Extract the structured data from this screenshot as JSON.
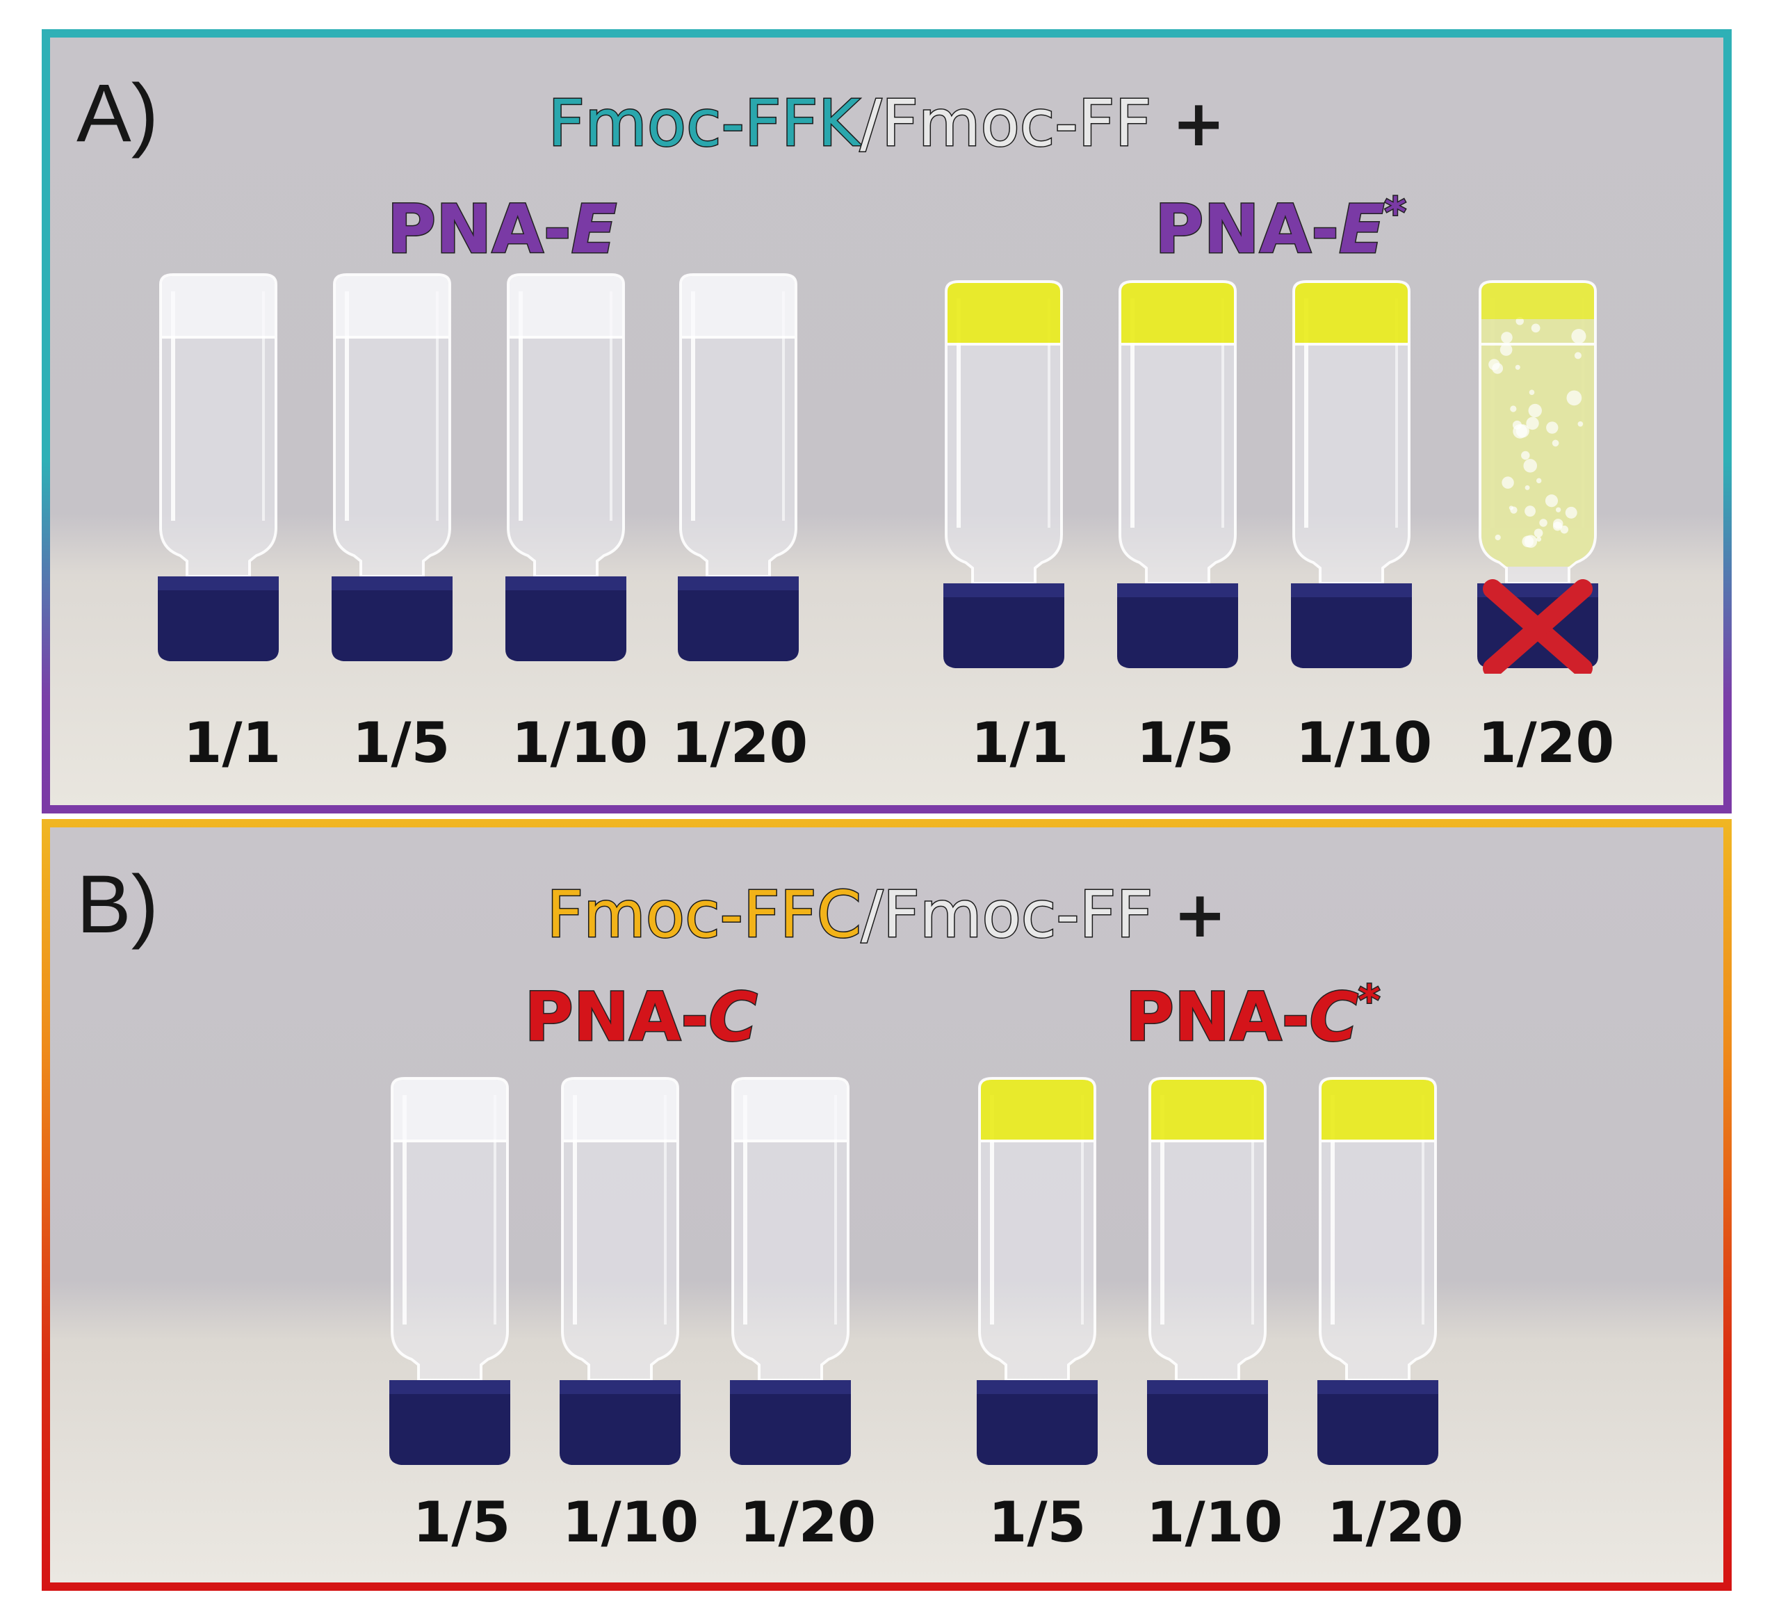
{
  "panels": [
    {
      "letter": "A)",
      "title_parts": [
        "Fmoc-FFK",
        "/",
        "Fmoc-FF",
        "+"
      ],
      "title_colors": [
        "#2aa7ad",
        "#e8e8e8",
        "#e8e8e8",
        "#1a1a1a"
      ],
      "groups": [
        {
          "label_main": "PNA-",
          "label_italic": "E",
          "label_sup": "",
          "label_color": "#7a3aa5"
        },
        {
          "label_main": "PNA-",
          "label_italic": "E",
          "label_sup": "*",
          "label_color": "#7a3aa5"
        }
      ],
      "ratios_group1": [
        "1/1",
        "1/5",
        "1/10",
        "1/20"
      ],
      "ratios_group2": [
        "1/1",
        "1/5",
        "1/10",
        "1/20"
      ],
      "vial_contents_group1": [
        "clear",
        "clear",
        "clear",
        "clear"
      ],
      "vial_contents_group2": [
        "yellow",
        "yellow",
        "yellow",
        "yellow-failed"
      ],
      "failed_marker": "red-x-icon"
    },
    {
      "letter": "B)",
      "title_parts": [
        "Fmoc-FFC",
        "/",
        "Fmoc-FF",
        "+"
      ],
      "title_colors": [
        "#f2b319",
        "#e8e8e8",
        "#e8e8e8",
        "#1a1a1a"
      ],
      "groups": [
        {
          "label_main": "PNA-",
          "label_italic": "C",
          "label_sup": "",
          "label_color": "#d4141a"
        },
        {
          "label_main": "PNA-",
          "label_italic": "C",
          "label_sup": "*",
          "label_color": "#d4141a"
        }
      ],
      "ratios_group1": [
        "1/5",
        "1/10",
        "1/20"
      ],
      "ratios_group2": [
        "1/5",
        "1/10",
        "1/20"
      ],
      "vial_contents_group1": [
        "clear",
        "clear",
        "clear"
      ],
      "vial_contents_group2": [
        "yellow",
        "yellow",
        "yellow"
      ]
    }
  ],
  "colors": {
    "cap": "#1e1f5e",
    "gel_yellow": "#e9ec1c",
    "cross": "#d0202a"
  }
}
